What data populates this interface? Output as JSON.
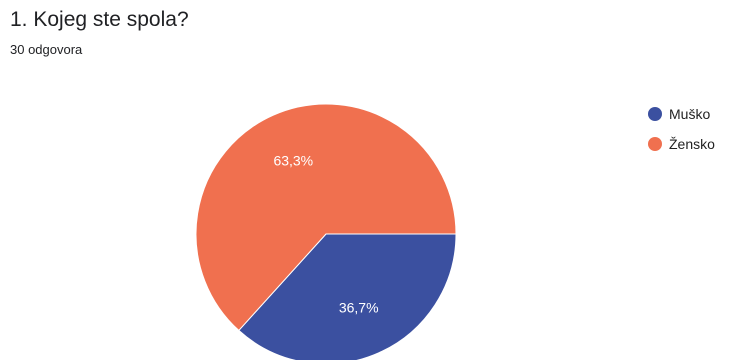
{
  "question": {
    "title": "1. Kojeg ste spola?",
    "response_count": "30 odgovora"
  },
  "chart_data": {
    "type": "pie",
    "title": "1. Kojeg ste spola?",
    "slices": [
      {
        "name": "Muško",
        "value": 36.7,
        "label": "36,7%",
        "color": "#3b50a0"
      },
      {
        "name": "Žensko",
        "value": 63.3,
        "label": "63,3%",
        "color": "#f0704f"
      }
    ],
    "legend_position": "right"
  }
}
